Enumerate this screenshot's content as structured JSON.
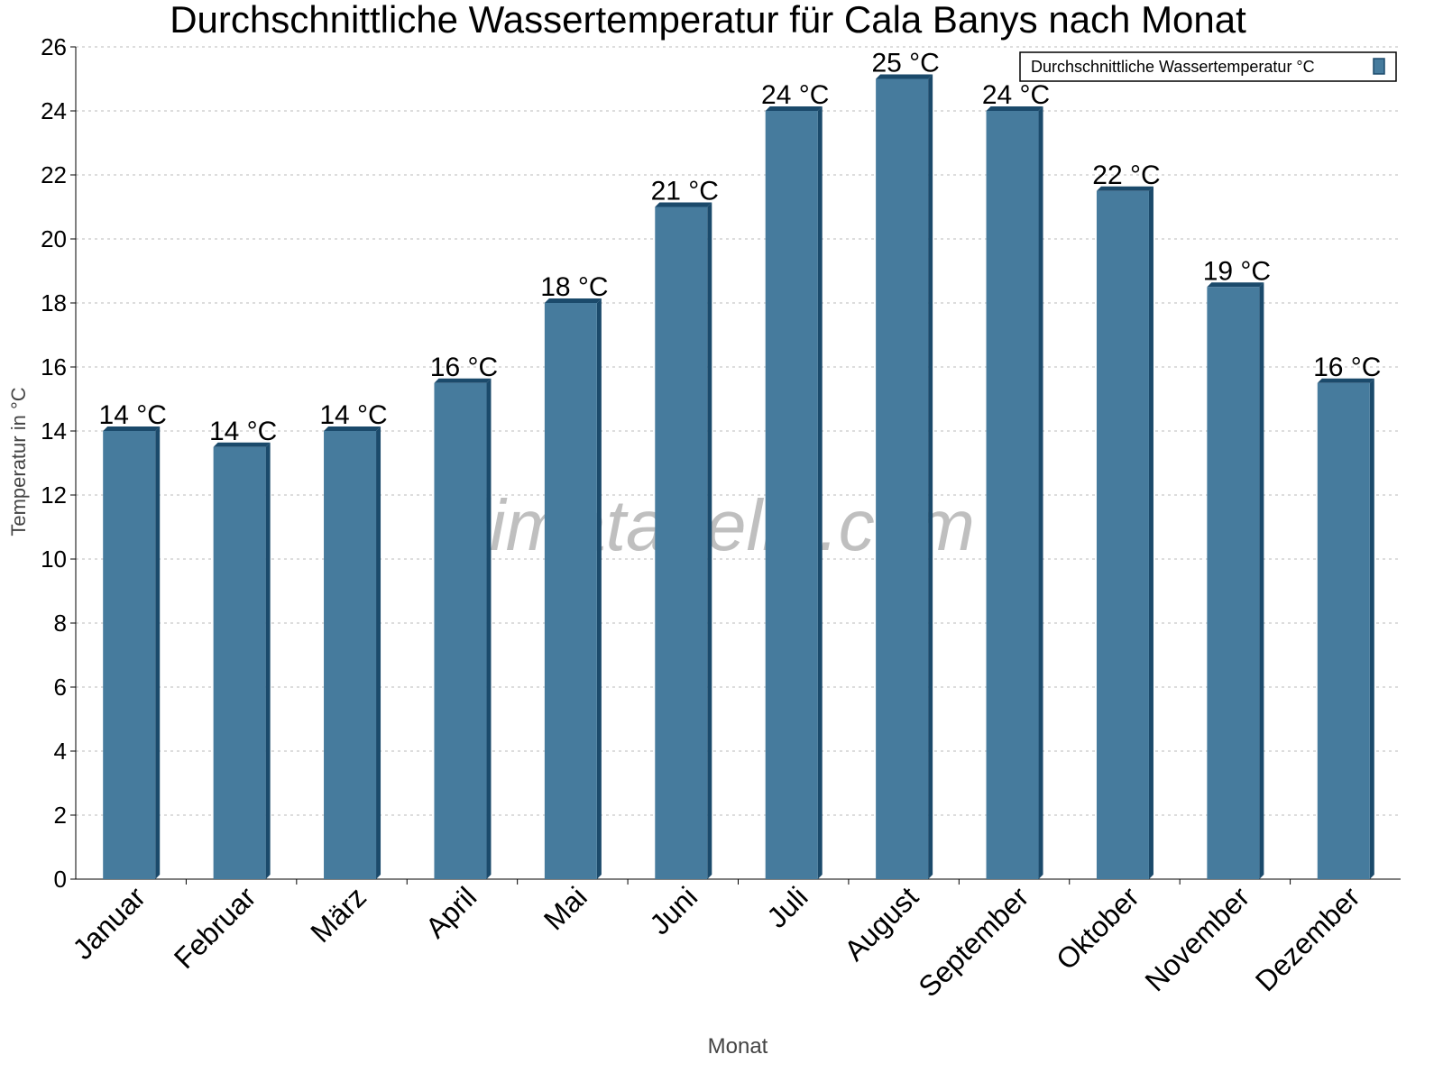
{
  "chart_data": {
    "type": "bar",
    "title": "Durchschnittliche Wassertemperatur für Cala Banys nach Monat",
    "xlabel": "Monat",
    "ylabel": "Temperatur in °C",
    "ylim": [
      0,
      26
    ],
    "yticks": [
      0,
      2,
      4,
      6,
      8,
      10,
      12,
      14,
      16,
      18,
      20,
      22,
      24,
      26
    ],
    "grid": true,
    "legend_position": "top-right",
    "categories": [
      "Januar",
      "Februar",
      "März",
      "April",
      "Mai",
      "Juni",
      "Juli",
      "August",
      "September",
      "Oktober",
      "November",
      "Dezember"
    ],
    "series": [
      {
        "name": "Durchschnittliche Wassertemperatur °C",
        "values": [
          14,
          13.5,
          14,
          15.5,
          18,
          21,
          24,
          25,
          24,
          21.5,
          18.5,
          15.5
        ],
        "labels": [
          "14 °C",
          "14 °C",
          "14 °C",
          "16 °C",
          "18 °C",
          "21 °C",
          "24 °C",
          "25 °C",
          "24 °C",
          "22 °C",
          "19 °C",
          "16 °C"
        ],
        "color": "#467b9d",
        "shade_color": "#1b4a6b"
      }
    ],
    "watermark": "klimatabelle.com"
  }
}
